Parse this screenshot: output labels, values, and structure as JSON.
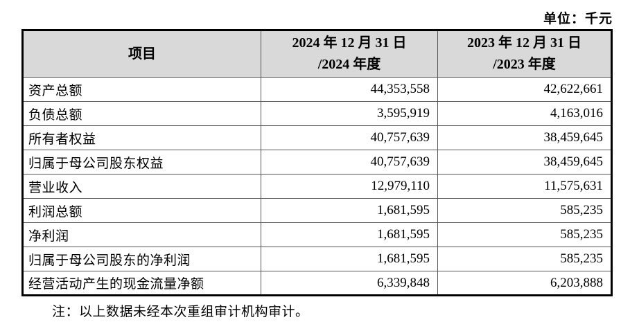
{
  "page": {
    "unit_label": "单位：千元",
    "footnote": "注：以上数据未经本次重组审计机构审计。"
  },
  "colors": {
    "header_bg": "#d9d9d9",
    "outer_border": "#000000",
    "inner_border": "#555555",
    "text": "#000000",
    "page_bg": "#ffffff"
  },
  "table": {
    "header": {
      "col_item": "项目",
      "col_2024_line1": "2024 年 12 月 31 日",
      "col_2024_line2": "/2024 年度",
      "col_2023_line1": "2023 年 12 月 31 日",
      "col_2023_line2": "/2023 年度"
    },
    "rows": [
      {
        "item": "资产总额",
        "value_2024": "44,353,558",
        "value_2023": "42,622,661"
      },
      {
        "item": "负债总额",
        "value_2024": "3,595,919",
        "value_2023": "4,163,016"
      },
      {
        "item": "所有者权益",
        "value_2024": "40,757,639",
        "value_2023": "38,459,645"
      },
      {
        "item": "归属于母公司股东权益",
        "value_2024": "40,757,639",
        "value_2023": "38,459,645"
      },
      {
        "item": "营业收入",
        "value_2024": "12,979,110",
        "value_2023": "11,575,631"
      },
      {
        "item": "利润总额",
        "value_2024": "1,681,595",
        "value_2023": "585,235"
      },
      {
        "item": "净利润",
        "value_2024": "1,681,595",
        "value_2023": "585,235"
      },
      {
        "item": "归属于母公司股东的净利润",
        "value_2024": "1,681,595",
        "value_2023": "585,235"
      },
      {
        "item": "经营活动产生的现金流量净额",
        "value_2024": "6,339,848",
        "value_2023": "6,203,888"
      }
    ]
  }
}
